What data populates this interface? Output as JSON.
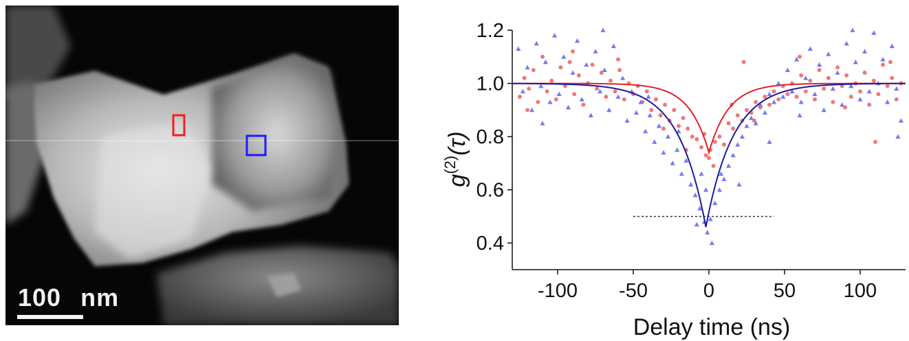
{
  "micrograph": {
    "scale_bar_value": "100",
    "scale_bar_unit": "nm",
    "roi_colors": {
      "red": "#ff1a1a",
      "blue": "#1a1aff"
    }
  },
  "chart_data": {
    "type": "scatter",
    "title": "",
    "xlabel": "Delay time (ns)",
    "ylabel": "g(2)(τ)",
    "ylabel_parts": {
      "g": "g",
      "sup": "(2)",
      "arg": "(τ)"
    },
    "xlim": [
      -130,
      130
    ],
    "ylim": [
      0.3,
      1.2
    ],
    "xticks": [
      -100,
      -50,
      0,
      50,
      100
    ],
    "yticks": [
      0.4,
      0.6,
      0.8,
      1.0,
      1.2
    ],
    "xtick_labels": [
      "-100",
      "-50",
      "0",
      "50",
      "100"
    ],
    "ytick_labels": [
      "0.4",
      "0.6",
      "0.8",
      "1.0",
      "1.2"
    ],
    "grid": false,
    "legend": "none",
    "reference_line": {
      "y": 0.5,
      "x_range": [
        -50,
        43
      ],
      "style": "dotted"
    },
    "series": [
      {
        "marker": "circle",
        "color": "#f07878",
        "fit": {
          "model": "lorentzian_dip",
          "baseline": 1.0,
          "depth": 0.26,
          "center": 0,
          "width_ns": 13
        },
        "fit_color": "#e0202a",
        "points": [
          [
            -125,
            0.95
          ],
          [
            -122,
            1.02
          ],
          [
            -119,
            0.98
          ],
          [
            -116,
            1.05
          ],
          [
            -113,
            0.93
          ],
          [
            -110,
            1.1
          ],
          [
            -107,
            0.97
          ],
          [
            -104,
            1.01
          ],
          [
            -101,
            0.94
          ],
          [
            -98,
            1.06
          ],
          [
            -95,
            0.99
          ],
          [
            -92,
            1.08
          ],
          [
            -89,
            0.96
          ],
          [
            -86,
            1.03
          ],
          [
            -83,
            0.92
          ],
          [
            -80,
            1.0
          ],
          [
            -77,
            1.07
          ],
          [
            -74,
            0.98
          ],
          [
            -71,
            1.04
          ],
          [
            -68,
            0.95
          ],
          [
            -65,
            1.01
          ],
          [
            -62,
            0.97
          ],
          [
            -59,
            1.05
          ],
          [
            -56,
            0.94
          ],
          [
            -53,
            1.0
          ],
          [
            -50,
            0.96
          ],
          [
            -47,
            0.99
          ],
          [
            -44,
            0.93
          ],
          [
            -41,
            0.97
          ],
          [
            -38,
            0.9
          ],
          [
            -35,
            0.94
          ],
          [
            -32,
            0.88
          ],
          [
            -29,
            0.92
          ],
          [
            -26,
            0.86
          ],
          [
            -23,
            0.9
          ],
          [
            -20,
            0.84
          ],
          [
            -17,
            0.87
          ],
          [
            -14,
            0.83
          ],
          [
            -11,
            0.8
          ],
          [
            -8,
            0.79
          ],
          [
            -5,
            0.76
          ],
          [
            -2,
            0.73
          ],
          [
            1,
            0.75
          ],
          [
            4,
            0.78
          ],
          [
            7,
            0.8
          ],
          [
            10,
            0.77
          ],
          [
            13,
            0.85
          ],
          [
            16,
            0.83
          ],
          [
            19,
            0.88
          ],
          [
            22,
            0.86
          ],
          [
            25,
            0.9
          ],
          [
            28,
            0.89
          ],
          [
            31,
            0.93
          ],
          [
            34,
            0.91
          ],
          [
            37,
            0.95
          ],
          [
            40,
            0.92
          ],
          [
            43,
            0.97
          ],
          [
            46,
            0.94
          ],
          [
            49,
            0.99
          ],
          [
            52,
            0.96
          ],
          [
            55,
            1.0
          ],
          [
            58,
            0.95
          ],
          [
            61,
            1.03
          ],
          [
            64,
            0.97
          ],
          [
            67,
            1.01
          ],
          [
            70,
            0.94
          ],
          [
            73,
            1.05
          ],
          [
            76,
            0.98
          ],
          [
            79,
            1.02
          ],
          [
            82,
            0.93
          ],
          [
            85,
            1.06
          ],
          [
            88,
            0.99
          ],
          [
            91,
            1.03
          ],
          [
            94,
            0.95
          ],
          [
            97,
            1.0
          ],
          [
            100,
            0.97
          ],
          [
            103,
            1.04
          ],
          [
            106,
            0.92
          ],
          [
            109,
            1.01
          ],
          [
            112,
            0.96
          ],
          [
            115,
            1.07
          ],
          [
            118,
            0.99
          ],
          [
            121,
            1.02
          ],
          [
            124,
            0.94
          ],
          [
            127,
            1.0
          ],
          [
            -120,
            0.9
          ],
          [
            -90,
            1.12
          ],
          [
            -60,
            1.09
          ],
          [
            -30,
            0.83
          ],
          [
            0,
            0.72
          ],
          [
            30,
            0.86
          ],
          [
            60,
            1.1
          ],
          [
            90,
            0.91
          ],
          [
            120,
            1.08
          ],
          [
            23,
            1.08
          ],
          [
            -3,
            0.81
          ],
          [
            3,
            0.69
          ],
          [
            -15,
            0.75
          ],
          [
            15,
            0.92
          ],
          [
            110,
            0.78
          ]
        ]
      },
      {
        "marker": "triangle",
        "color": "#7878f0",
        "fit": {
          "model": "lorentzian_dip",
          "baseline": 1.0,
          "depth": 0.54,
          "center": -2,
          "width_ns": 18
        },
        "fit_color": "#1a1aa0",
        "points": [
          [
            -126,
            1.13
          ],
          [
            -123,
            0.97
          ],
          [
            -120,
            1.06
          ],
          [
            -117,
            0.9
          ],
          [
            -114,
            1.15
          ],
          [
            -111,
            0.99
          ],
          [
            -108,
            1.08
          ],
          [
            -105,
            0.93
          ],
          [
            -102,
            1.18
          ],
          [
            -99,
            0.96
          ],
          [
            -96,
            1.1
          ],
          [
            -93,
            0.91
          ],
          [
            -90,
            1.04
          ],
          [
            -87,
            1.16
          ],
          [
            -84,
            0.94
          ],
          [
            -81,
            1.07
          ],
          [
            -78,
            0.88
          ],
          [
            -75,
            1.12
          ],
          [
            -72,
            0.97
          ],
          [
            -69,
            1.05
          ],
          [
            -66,
            0.9
          ],
          [
            -63,
            1.14
          ],
          [
            -60,
            0.95
          ],
          [
            -57,
            1.02
          ],
          [
            -54,
            0.86
          ],
          [
            -51,
            0.97
          ],
          [
            -48,
            0.89
          ],
          [
            -45,
            0.93
          ],
          [
            -42,
            0.82
          ],
          [
            -39,
            0.88
          ],
          [
            -36,
            0.78
          ],
          [
            -33,
            0.84
          ],
          [
            -30,
            0.74
          ],
          [
            -27,
            0.8
          ],
          [
            -24,
            0.7
          ],
          [
            -21,
            0.75
          ],
          [
            -18,
            0.66
          ],
          [
            -15,
            0.71
          ],
          [
            -12,
            0.62
          ],
          [
            -9,
            0.58
          ],
          [
            -6,
            0.53
          ],
          [
            -3,
            0.48
          ],
          [
            -1,
            0.44
          ],
          [
            1,
            0.49
          ],
          [
            4,
            0.55
          ],
          [
            7,
            0.6
          ],
          [
            10,
            0.64
          ],
          [
            13,
            0.69
          ],
          [
            16,
            0.73
          ],
          [
            19,
            0.77
          ],
          [
            22,
            0.8
          ],
          [
            25,
            0.84
          ],
          [
            28,
            0.87
          ],
          [
            31,
            0.85
          ],
          [
            34,
            0.92
          ],
          [
            37,
            0.89
          ],
          [
            40,
            0.96
          ],
          [
            43,
            0.93
          ],
          [
            46,
            1.0
          ],
          [
            49,
            0.95
          ],
          [
            52,
            1.05
          ],
          [
            55,
            0.97
          ],
          [
            58,
            1.09
          ],
          [
            61,
            0.93
          ],
          [
            64,
            1.02
          ],
          [
            67,
            1.13
          ],
          [
            70,
            0.96
          ],
          [
            73,
            1.07
          ],
          [
            76,
            0.9
          ],
          [
            79,
            1.11
          ],
          [
            82,
            0.98
          ],
          [
            85,
            1.04
          ],
          [
            88,
            0.92
          ],
          [
            91,
            1.15
          ],
          [
            94,
            0.99
          ],
          [
            97,
            1.08
          ],
          [
            100,
            0.94
          ],
          [
            103,
            1.12
          ],
          [
            106,
            0.97
          ],
          [
            109,
            1.19
          ],
          [
            112,
            1.0
          ],
          [
            115,
            1.09
          ],
          [
            118,
            0.93
          ],
          [
            121,
            1.14
          ],
          [
            124,
            0.98
          ],
          [
            127,
            0.86
          ],
          [
            -2,
            0.6
          ],
          [
            2,
            0.4
          ],
          [
            -8,
            0.47
          ],
          [
            8,
            0.66
          ],
          [
            -20,
            0.82
          ],
          [
            20,
            0.62
          ],
          [
            -40,
            0.95
          ],
          [
            40,
            0.78
          ],
          [
            -70,
            1.2
          ],
          [
            95,
            1.2
          ],
          [
            125,
            0.8
          ],
          [
            -110,
            0.85
          ],
          [
            60,
            0.88
          ],
          [
            -5,
            0.66
          ]
        ]
      }
    ]
  }
}
